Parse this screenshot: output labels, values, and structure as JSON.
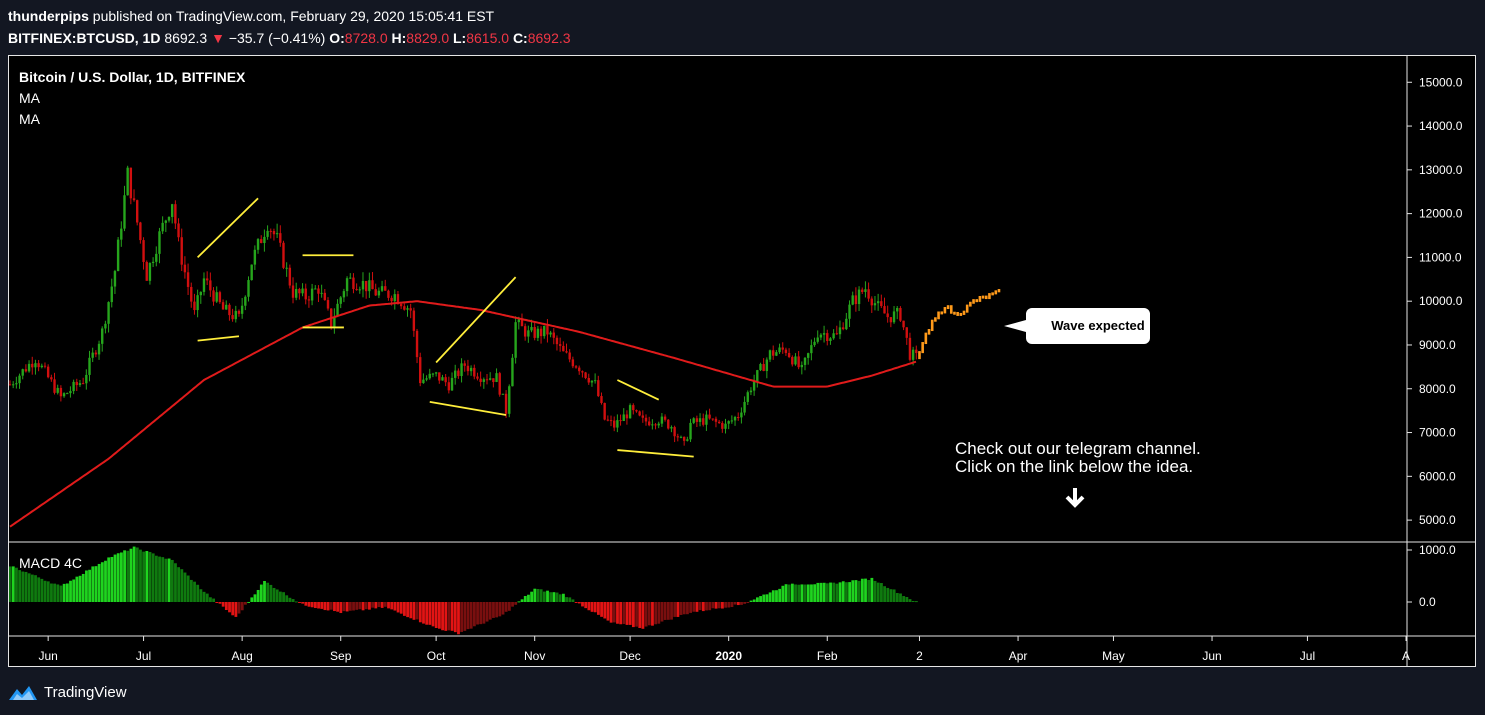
{
  "header": {
    "author": "thunderpips",
    "published_text": "published on TradingView.com, February 29, 2020 15:05:41 EST",
    "symbol": "BITFINEX:BTCUSD, 1D",
    "last": "8692.3",
    "arrow": "▼",
    "change": "−35.7 (−0.41%)",
    "o_label": "O:",
    "o": "8728.0",
    "h_label": "H:",
    "h": "8829.0",
    "l_label": "L:",
    "l": "8615.0",
    "c_label": "C:",
    "c": "8692.3"
  },
  "legend": {
    "title": "Bitcoin / U.S. Dollar, 1D, BITFINEX",
    "ma1": "MA",
    "ma2": "MA",
    "macd": "MACD 4C"
  },
  "annotations": {
    "callout": "Wave expected",
    "note_line1": "Check out our telegram channel.",
    "note_line2": "Click on the link below the idea."
  },
  "footer": {
    "brand": "TradingView"
  },
  "colors": {
    "up": "#26a51c",
    "down": "#d10f0f",
    "ma": "#e01b1b",
    "pattern": "#ffee3b",
    "projection": "#ff9a1a",
    "bg": "#000000"
  },
  "chart_data": {
    "type": "candlestick",
    "price_axis": {
      "min": 4500,
      "max": 15600,
      "ticks": [
        "15000.0",
        "14000.0",
        "13000.0",
        "12000.0",
        "11000.0",
        "10000.0",
        "9000.0",
        "8000.0",
        "7000.0",
        "6000.0",
        "5000.0"
      ]
    },
    "macd_axis": {
      "ticks": [
        "1000.0",
        "0.0"
      ]
    },
    "time_axis": {
      "labels": [
        "Jun",
        "Jul",
        "Aug",
        "Sep",
        "Oct",
        "Nov",
        "Dec",
        "2020",
        "Feb",
        "2",
        "Apr",
        "May",
        "Jun",
        "Jul",
        "A"
      ]
    },
    "price_path": [
      [
        "2019-05-20",
        8100
      ],
      [
        "2019-05-28",
        8700
      ],
      [
        "2019-06-05",
        7800
      ],
      [
        "2019-06-12",
        8200
      ],
      [
        "2019-06-18",
        9300
      ],
      [
        "2019-06-22",
        10700
      ],
      [
        "2019-06-26",
        12900
      ],
      [
        "2019-06-29",
        11800
      ],
      [
        "2019-07-02",
        10600
      ],
      [
        "2019-07-06",
        11500
      ],
      [
        "2019-07-10",
        12300
      ],
      [
        "2019-07-12",
        11300
      ],
      [
        "2019-07-17",
        9700
      ],
      [
        "2019-07-20",
        10500
      ],
      [
        "2019-07-26",
        9800
      ],
      [
        "2019-07-31",
        9600
      ],
      [
        "2019-08-04",
        10900
      ],
      [
        "2019-08-09",
        11800
      ],
      [
        "2019-08-12",
        11400
      ],
      [
        "2019-08-17",
        10200
      ],
      [
        "2019-08-21",
        10100
      ],
      [
        "2019-08-25",
        10300
      ],
      [
        "2019-08-29",
        9500
      ],
      [
        "2019-09-03",
        10500
      ],
      [
        "2019-09-08",
        10400
      ],
      [
        "2019-09-12",
        10200
      ],
      [
        "2019-09-18",
        10150
      ],
      [
        "2019-09-23",
        9800
      ],
      [
        "2019-09-26",
        8200
      ],
      [
        "2019-10-01",
        8300
      ],
      [
        "2019-10-05",
        8100
      ],
      [
        "2019-10-10",
        8550
      ],
      [
        "2019-10-15",
        8300
      ],
      [
        "2019-10-20",
        8250
      ],
      [
        "2019-10-23",
        7500
      ],
      [
        "2019-10-26",
        9500
      ],
      [
        "2019-10-30",
        9250
      ],
      [
        "2019-11-05",
        9300
      ],
      [
        "2019-11-10",
        8800
      ],
      [
        "2019-11-15",
        8500
      ],
      [
        "2019-11-20",
        8100
      ],
      [
        "2019-11-23",
        7300
      ],
      [
        "2019-11-26",
        7150
      ],
      [
        "2019-12-01",
        7500
      ],
      [
        "2019-12-05",
        7250
      ],
      [
        "2019-12-10",
        7300
      ],
      [
        "2019-12-14",
        7150
      ],
      [
        "2019-12-18",
        6700
      ],
      [
        "2019-12-20",
        7200
      ],
      [
        "2019-12-25",
        7300
      ],
      [
        "2019-12-31",
        7150
      ],
      [
        "2020-01-04",
        7400
      ],
      [
        "2020-01-08",
        8050
      ],
      [
        "2020-01-14",
        8800
      ],
      [
        "2020-01-19",
        8900
      ],
      [
        "2020-01-24",
        8400
      ],
      [
        "2020-01-29",
        9300
      ],
      [
        "2020-02-04",
        9200
      ],
      [
        "2020-02-09",
        10000
      ],
      [
        "2020-02-13",
        10300
      ],
      [
        "2020-02-17",
        9850
      ],
      [
        "2020-02-20",
        9650
      ],
      [
        "2020-02-24",
        9700
      ],
      [
        "2020-02-27",
        8800
      ],
      [
        "2020-02-29",
        8692
      ]
    ],
    "ma_path": [
      [
        "2019-05-20",
        4850
      ],
      [
        "2019-06-20",
        6400
      ],
      [
        "2019-07-20",
        8200
      ],
      [
        "2019-08-20",
        9400
      ],
      [
        "2019-09-10",
        9900
      ],
      [
        "2019-09-25",
        10000
      ],
      [
        "2019-10-15",
        9800
      ],
      [
        "2019-11-15",
        9300
      ],
      [
        "2019-12-15",
        8700
      ],
      [
        "2020-01-15",
        8050
      ],
      [
        "2020-02-01",
        8050
      ],
      [
        "2020-02-15",
        8300
      ],
      [
        "2020-02-29",
        8620
      ]
    ],
    "projection_path": [
      [
        "2020-02-29",
        8700
      ],
      [
        "2020-03-03",
        9200
      ],
      [
        "2020-03-05",
        9500
      ],
      [
        "2020-03-07",
        9700
      ],
      [
        "2020-03-09",
        9900
      ],
      [
        "2020-03-12",
        9700
      ],
      [
        "2020-03-15",
        9800
      ],
      [
        "2020-03-18",
        10000
      ],
      [
        "2020-03-22",
        10100
      ],
      [
        "2020-03-26",
        10200
      ]
    ],
    "patterns": [
      {
        "name": "wedge-1",
        "lines": [
          [
            [
              "2019-07-18",
              11000
            ],
            [
              "2019-08-06",
              12350
            ]
          ],
          [
            [
              "2019-07-18",
              9100
            ],
            [
              "2019-07-31",
              9200
            ]
          ]
        ]
      },
      {
        "name": "flag-1",
        "lines": [
          [
            [
              "2019-08-20",
              11050
            ],
            [
              "2019-09-05",
              11050
            ]
          ],
          [
            [
              "2019-08-20",
              9400
            ],
            [
              "2019-09-02",
              9400
            ]
          ]
        ]
      },
      {
        "name": "wedge-2",
        "lines": [
          [
            [
              "2019-10-01",
              8600
            ],
            [
              "2019-10-26",
              10550
            ]
          ],
          [
            [
              "2019-09-29",
              7700
            ],
            [
              "2019-10-23",
              7400
            ]
          ]
        ]
      },
      {
        "name": "wedge-3",
        "lines": [
          [
            [
              "2019-11-27",
              8200
            ],
            [
              "2019-12-10",
              7750
            ]
          ],
          [
            [
              "2019-11-27",
              6600
            ],
            [
              "2019-12-21",
              6450
            ]
          ]
        ]
      }
    ],
    "macd_path": [
      [
        "2019-05-20",
        700
      ],
      [
        "2019-06-05",
        300
      ],
      [
        "2019-06-20",
        850
      ],
      [
        "2019-06-28",
        1050
      ],
      [
        "2019-07-10",
        800
      ],
      [
        "2019-07-20",
        200
      ],
      [
        "2019-07-30",
        -300
      ],
      [
        "2019-08-08",
        400
      ],
      [
        "2019-08-20",
        -50
      ],
      [
        "2019-09-01",
        -200
      ],
      [
        "2019-09-15",
        -100
      ],
      [
        "2019-10-01",
        -500
      ],
      [
        "2019-10-08",
        -600
      ],
      [
        "2019-10-22",
        -250
      ],
      [
        "2019-11-01",
        250
      ],
      [
        "2019-11-10",
        150
      ],
      [
        "2019-11-25",
        -400
      ],
      [
        "2019-12-05",
        -500
      ],
      [
        "2019-12-20",
        -200
      ],
      [
        "2020-01-05",
        -50
      ],
      [
        "2020-01-20",
        350
      ],
      [
        "2020-02-01",
        350
      ],
      [
        "2020-02-15",
        450
      ],
      [
        "2020-02-29",
        0
      ]
    ]
  }
}
